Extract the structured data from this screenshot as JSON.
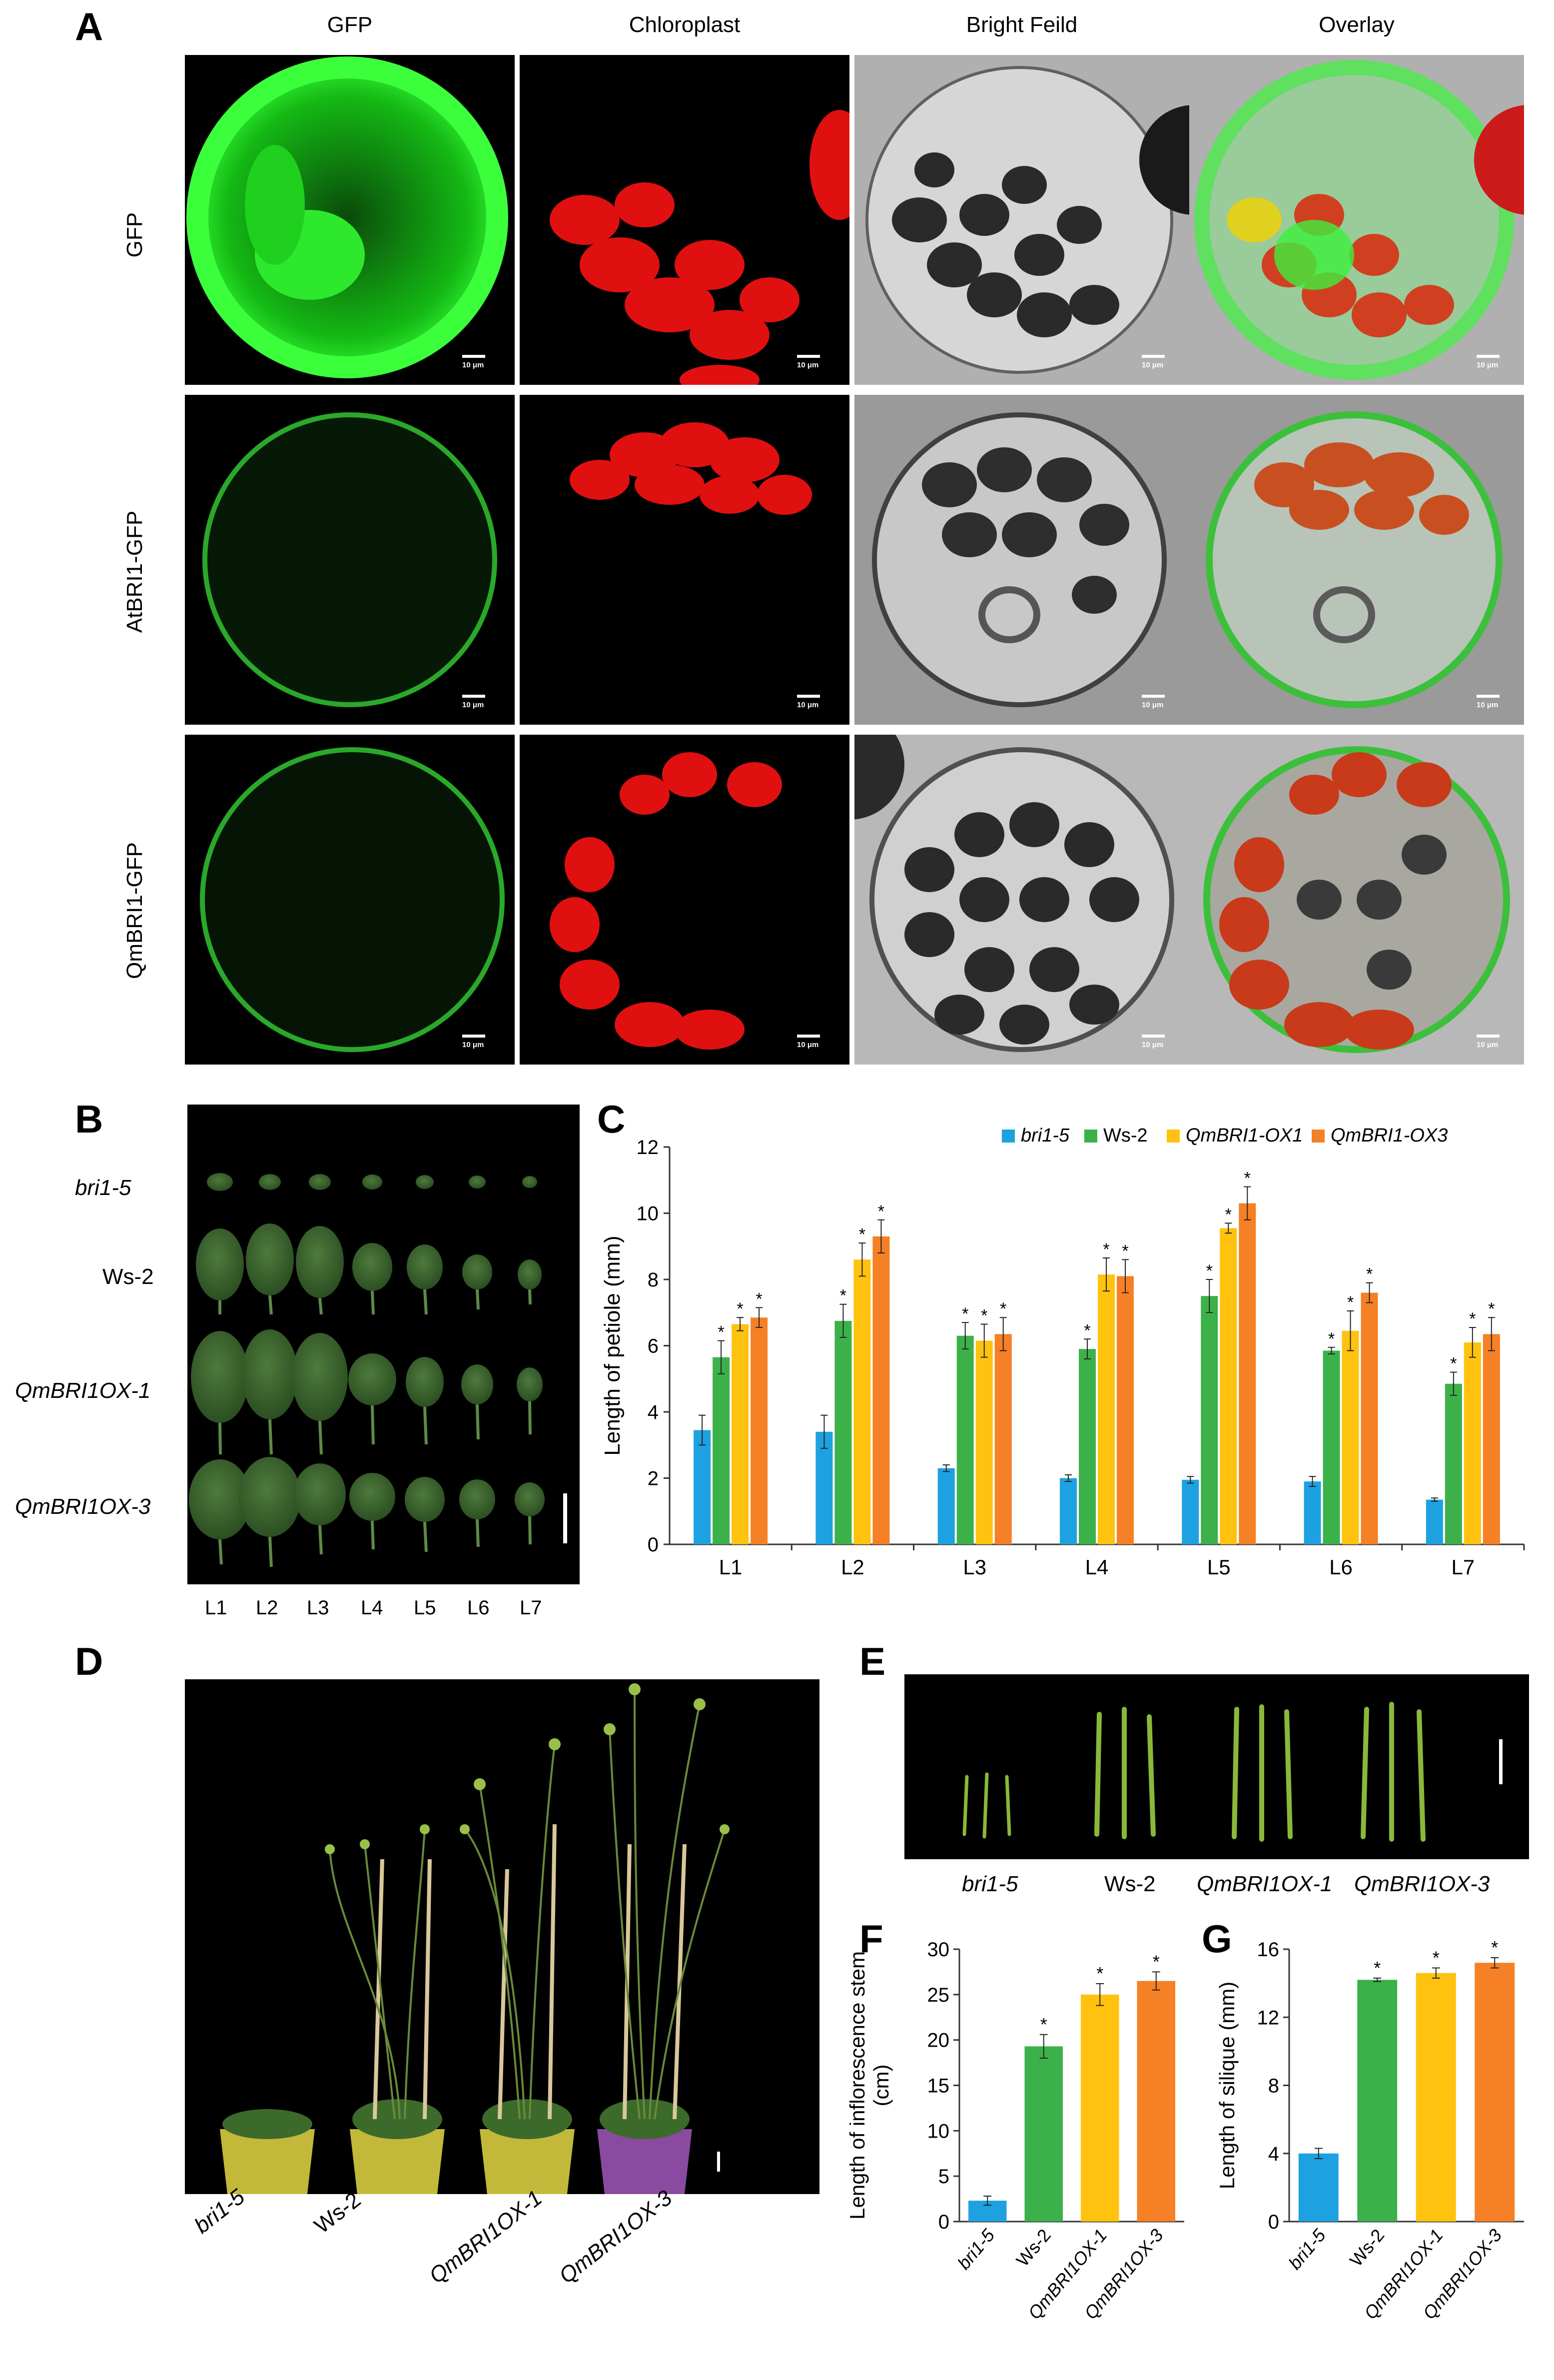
{
  "panelA": {
    "label": "A",
    "columns": [
      "GFP",
      "Chloroplast",
      "Bright Feild",
      "Overlay"
    ],
    "rows": [
      "GFP",
      "AtBRI1-GFP",
      "QmBRI1-GFP"
    ],
    "scale_bar": "10 μm"
  },
  "panelB": {
    "label": "B",
    "rows": [
      "bri1-5",
      "Ws-2",
      "QmBRI1OX-1",
      "QmBRI1OX-3"
    ],
    "leaves": [
      "L1",
      "L2",
      "L3",
      "L4",
      "L5",
      "L6",
      "L7"
    ]
  },
  "panelC": {
    "label": "C",
    "chart_data": {
      "type": "bar",
      "categories": [
        "L1",
        "L2",
        "L3",
        "L4",
        "L5",
        "L6",
        "L7"
      ],
      "ylabel": "Length of petiole (mm)",
      "ylim": [
        0,
        12
      ],
      "yticks": [
        0,
        2,
        4,
        6,
        8,
        10,
        12
      ],
      "legend_position": "top",
      "series": [
        {
          "name": "bri1-5",
          "color": "#1ea1e0",
          "values": [
            3.45,
            3.4,
            2.3,
            2.0,
            1.95,
            1.9,
            1.35
          ],
          "errors": [
            0.45,
            0.5,
            0.1,
            0.1,
            0.1,
            0.15,
            0.05
          ],
          "sig": [
            false,
            false,
            false,
            false,
            false,
            false,
            false
          ]
        },
        {
          "name": "Ws-2",
          "color": "#3cb14a",
          "values": [
            5.65,
            6.75,
            6.3,
            5.9,
            7.5,
            5.85,
            4.85
          ],
          "errors": [
            0.5,
            0.5,
            0.4,
            0.3,
            0.5,
            0.1,
            0.35
          ],
          "sig": [
            true,
            true,
            true,
            true,
            true,
            true,
            true
          ]
        },
        {
          "name": "QmBRI1-OX1",
          "color": "#ffc20e",
          "values": [
            6.65,
            8.6,
            6.15,
            8.15,
            9.55,
            6.45,
            6.1
          ],
          "errors": [
            0.2,
            0.5,
            0.5,
            0.5,
            0.15,
            0.6,
            0.45
          ],
          "sig": [
            true,
            true,
            true,
            true,
            true,
            true,
            true
          ]
        },
        {
          "name": "QmBRI1-OX3",
          "color": "#f58025",
          "values": [
            6.85,
            9.3,
            6.35,
            8.1,
            10.3,
            7.6,
            6.35
          ],
          "errors": [
            0.3,
            0.5,
            0.5,
            0.5,
            0.5,
            0.3,
            0.5
          ],
          "sig": [
            true,
            true,
            true,
            true,
            true,
            true,
            true
          ]
        }
      ]
    }
  },
  "panelD": {
    "label": "D",
    "labels": [
      "bri1-5",
      "Ws-2",
      "QmBRI1OX-1",
      "QmBRI1OX-3"
    ]
  },
  "panelE": {
    "label": "E",
    "labels": [
      "bri1-5",
      "Ws-2",
      "QmBRI1OX-1",
      "QmBRI1OX-3"
    ]
  },
  "panelF": {
    "label": "F",
    "chart_data": {
      "type": "bar",
      "categories": [
        "bri1-5",
        "Ws-2",
        "QmBRI1OX-1",
        "QmBRI1OX-3"
      ],
      "values": [
        2.3,
        19.3,
        25.0,
        26.5
      ],
      "errors": [
        0.5,
        1.3,
        1.2,
        1.0
      ],
      "sig": [
        false,
        true,
        true,
        true
      ],
      "colors": [
        "#1ea1e0",
        "#3cb14a",
        "#ffc20e",
        "#f58025"
      ],
      "ylabel": "Length of inflorescence stem (cm)",
      "ylim": [
        0,
        30
      ],
      "yticks": [
        0,
        5,
        10,
        15,
        20,
        25,
        30
      ]
    }
  },
  "panelG": {
    "label": "G",
    "chart_data": {
      "type": "bar",
      "categories": [
        "bri1-5",
        "Ws-2",
        "QmBRI1OX-1",
        "QmBRI1OX-3"
      ],
      "values": [
        4.0,
        14.2,
        14.6,
        15.2
      ],
      "errors": [
        0.3,
        0.1,
        0.3,
        0.3
      ],
      "sig": [
        false,
        true,
        true,
        true
      ],
      "colors": [
        "#1ea1e0",
        "#3cb14a",
        "#ffc20e",
        "#f58025"
      ],
      "ylabel": "Length of silique (mm)",
      "ylim": [
        0,
        16
      ],
      "yticks": [
        0,
        4,
        8,
        12,
        16
      ]
    }
  }
}
